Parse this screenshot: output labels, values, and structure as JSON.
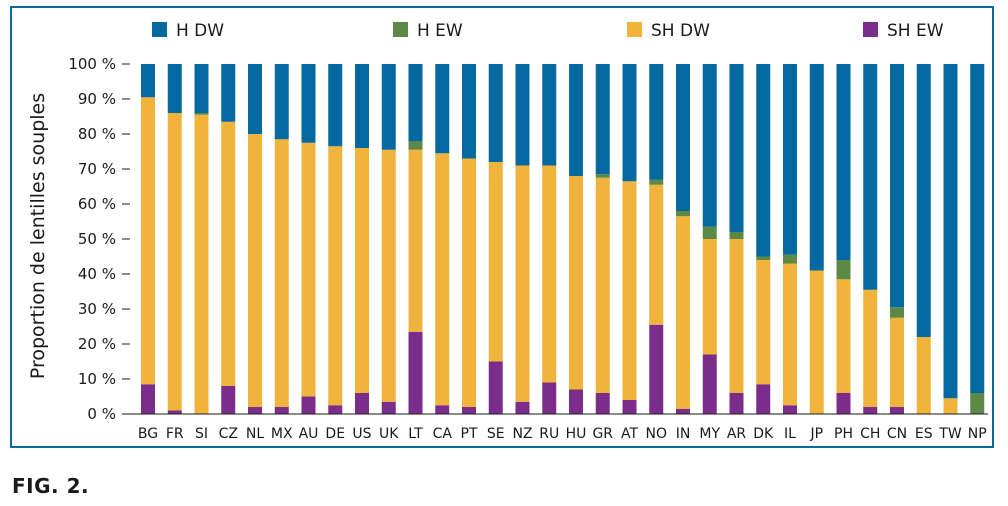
{
  "figure_label": "FIG. 2.",
  "chart_data": {
    "type": "bar",
    "stacked": true,
    "ylabel": "Proportion de lentilles souples",
    "xlabel": "",
    "ylim": [
      0,
      100
    ],
    "yticks": [
      "0 %",
      "10 %",
      "20 %",
      "30 %",
      "40 %",
      "50 %",
      "60 %",
      "70 %",
      "80 %",
      "90 %",
      "100 %"
    ],
    "grid": false,
    "legend_placement": "top",
    "categories": [
      "BG",
      "FR",
      "SI",
      "CZ",
      "NL",
      "MX",
      "AU",
      "DE",
      "US",
      "UK",
      "LT",
      "CA",
      "PT",
      "SE",
      "NZ",
      "RU",
      "HU",
      "GR",
      "AT",
      "NO",
      "IN",
      "MY",
      "AR",
      "DK",
      "IL",
      "JP",
      "PH",
      "CH",
      "CN",
      "ES",
      "TW",
      "NP"
    ],
    "series": [
      {
        "name": "SH EW",
        "color": "#7b2d8b",
        "values": [
          8.5,
          1,
          0,
          8,
          2,
          2,
          5,
          2.5,
          6,
          3.5,
          23.5,
          2.5,
          2,
          15,
          3.5,
          9,
          7,
          6,
          4,
          25.5,
          1.5,
          17,
          6,
          8.5,
          2.5,
          0,
          6,
          2,
          2,
          0,
          0,
          0
        ]
      },
      {
        "name": "SH DW",
        "color": "#f0b43c",
        "values": [
          82,
          85,
          85.5,
          75.5,
          78,
          76.5,
          72.5,
          74,
          70,
          72,
          52,
          72,
          71,
          57,
          67.5,
          62,
          61,
          61.5,
          62.5,
          40,
          55,
          33,
          44,
          35.5,
          40.5,
          41,
          32.5,
          33.5,
          25.5,
          22,
          4.5,
          0
        ]
      },
      {
        "name": "H EW",
        "color": "#5c8a46",
        "values": [
          0,
          0,
          0.5,
          0,
          0,
          0,
          0,
          0,
          0,
          0,
          2.5,
          0,
          0,
          0,
          0,
          0,
          0,
          1,
          0,
          1.5,
          1.5,
          3.5,
          2,
          1,
          2.5,
          0,
          5.5,
          0,
          3,
          0,
          0,
          6
        ]
      },
      {
        "name": "H DW",
        "color": "#0569a1",
        "values": [
          9.5,
          14,
          14,
          16.5,
          20,
          21.5,
          22.5,
          23.5,
          24,
          24.5,
          22,
          25.5,
          27,
          28,
          29,
          29,
          32,
          31.5,
          33.5,
          33,
          42,
          46.5,
          48,
          55,
          54.5,
          59,
          56,
          64.5,
          69.5,
          78,
          95.5,
          94
        ]
      }
    ],
    "legend_order": [
      "H DW",
      "H EW",
      "SH DW",
      "SH EW"
    ]
  }
}
